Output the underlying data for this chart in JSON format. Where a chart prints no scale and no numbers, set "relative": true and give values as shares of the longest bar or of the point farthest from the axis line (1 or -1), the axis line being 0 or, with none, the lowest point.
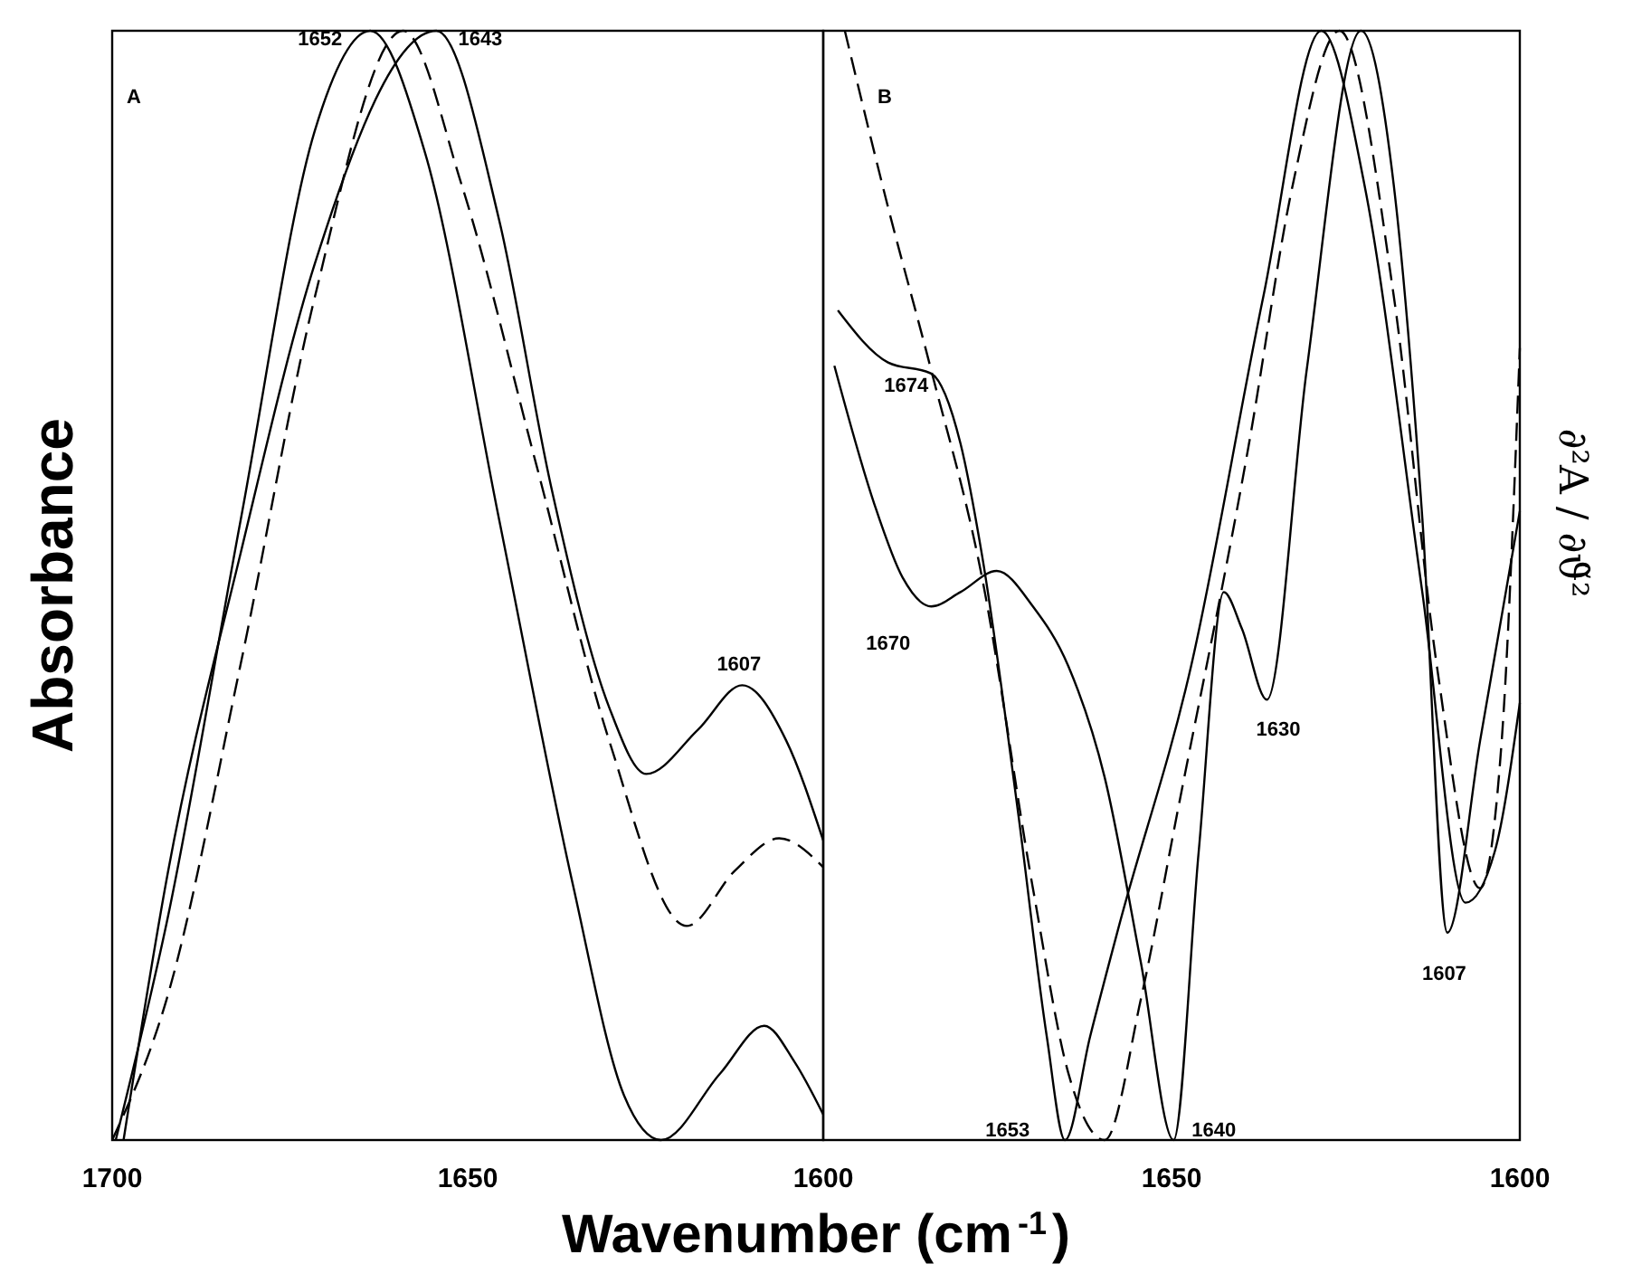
{
  "chart_data": [
    {
      "type": "line",
      "relative": true,
      "xlim": [
        1700,
        1600
      ],
      "xticks": [
        1700,
        1650,
        1600
      ],
      "ylabel": "Absorbance",
      "xlabel": "Wavenumber (cm$^{-1}$)",
      "annotations": [
        "A",
        {
          "text": "1652",
          "x": 1663.7,
          "y": 1
        },
        {
          "text": "1643",
          "x": 1654.4,
          "y": 1
        },
        {
          "text": "1607",
          "x": 1611.4,
          "y": 0.41
        }
      ],
      "series": [
        {
          "color": "#000000",
          "line_style": "solid",
          "x": [
            1699.5,
            1692.2,
            1681.9,
            1671.5,
            1663.7,
            1656.0,
            1645.6,
            1635.2,
            1628.0,
            1622.8,
            1614.5,
            1608.3,
            1604.0,
            1600
          ],
          "values": [
            0,
            0.2,
            0.56,
            0.91,
            1,
            0.89,
            0.56,
            0.23,
            0.04,
            0,
            0.06,
            0.103,
            0.07,
            0.023
          ]
        },
        {
          "color": "#000000",
          "line_style": "dashed",
          "x": [
            1700,
            1692.2,
            1681.9,
            1671.5,
            1659.1,
            1650.8,
            1640.4,
            1630.1,
            1619.2,
            1612.4,
            1606.2,
            1600
          ],
          "values": [
            0,
            0.13,
            0.43,
            0.76,
            1,
            0.86,
            0.61,
            0.36,
            0.193,
            0.243,
            0.272,
            0.246
          ]
        },
        {
          "color": "#000000",
          "line_style": "solid",
          "x": [
            1698.4,
            1692.2,
            1681.9,
            1671.5,
            1654.4,
            1645.6,
            1638.3,
            1630.1,
            1624.9,
            1617.6,
            1611.4,
            1605.2,
            1600
          ],
          "values": [
            0,
            0.24,
            0.53,
            0.79,
            1,
            0.83,
            0.59,
            0.39,
            0.33,
            0.37,
            0.41,
            0.36,
            0.27
          ]
        }
      ]
    },
    {
      "type": "line",
      "relative": true,
      "xlim": [
        1700,
        1600
      ],
      "xticks": [
        1650,
        1600
      ],
      "y2label": "∂²A / ∂ϑ̃²",
      "annotations": [
        "B",
        {
          "text": "1674",
          "x": 1684.5,
          "y": 0.691
        },
        {
          "text": "1670",
          "x": 1684.5,
          "y": 0.481
        },
        {
          "text": "1653",
          "x": 1665.3,
          "y": 0
        },
        {
          "text": "1640",
          "x": 1649.7,
          "y": 0
        },
        {
          "text": "1630",
          "x": 1636.3,
          "y": 0.397
        },
        {
          "text": "1607",
          "x": 1610.4,
          "y": 0.187
        }
      ],
      "series": [
        {
          "color": "#000000",
          "line_style": "solid",
          "x": [
            1697.9,
            1690.7,
            1684.5,
            1680.3,
            1677.2,
            1672.0,
            1667.9,
            1665.3,
            1661.7,
            1657.5,
            1647.2,
            1636.8,
            1628.5,
            1622.3,
            1614.0,
            1607.8,
            1603.6,
            1600
          ],
          "values": [
            0.748,
            0.701,
            0.691,
            0.628,
            0.527,
            0.294,
            0.093,
            0,
            0.093,
            0.194,
            0.427,
            0.761,
            1,
            0.861,
            0.494,
            0.214,
            0.26,
            0.394
          ]
        },
        {
          "color": "#000000",
          "line_style": "dashed",
          "x": [
            1696.9,
            1690.7,
            1684.5,
            1677.2,
            1669.9,
            1664.8,
            1659.6,
            1654.4,
            1649.2,
            1638.9,
            1632.6,
            1625.9,
            1618.1,
            1611.9,
            1605.7,
            1602.6,
            1600
          ],
          "values": [
            1,
            0.841,
            0.694,
            0.507,
            0.227,
            0.06,
            0,
            0.127,
            0.294,
            0.627,
            0.861,
            1,
            0.761,
            0.427,
            0.227,
            0.36,
            0.714
          ]
        },
        {
          "color": "#000000",
          "line_style": "solid",
          "x": [
            1698.4,
            1692.7,
            1688.6,
            1684.5,
            1680.3,
            1675.1,
            1669.9,
            1664.8,
            1659.6,
            1654.4,
            1649.7,
            1646.1,
            1642.5,
            1639.9,
            1636.3,
            1630.6,
            1622.8,
            1618.1,
            1614.0,
            1610.4,
            1605.7,
            1600
          ],
          "values": [
            0.698,
            0.574,
            0.507,
            0.481,
            0.494,
            0.513,
            0.481,
            0.427,
            0.327,
            0.16,
            0,
            0.26,
            0.494,
            0.461,
            0.397,
            0.694,
            1,
            0.861,
            0.561,
            0.187,
            0.36,
            0.567
          ]
        }
      ]
    }
  ]
}
